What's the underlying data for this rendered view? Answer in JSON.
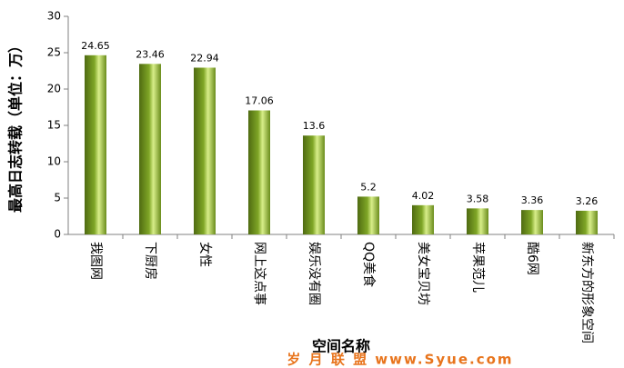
{
  "chart_data": {
    "type": "bar",
    "y_label": "最高日志转载（单位：万）",
    "x_label": "空间名称",
    "watermark": "岁 月 联 盟 www.Syue.com",
    "categories": [
      "我图网",
      "下厨房",
      "女性",
      "网上这点事",
      "娱乐没有圈",
      "QQ美食",
      "美女宝贝坊",
      "苹果范儿",
      "酷6网",
      "新东方的形象空间"
    ],
    "values": [
      24.65,
      23.46,
      22.94,
      17.06,
      13.6,
      5.2,
      4.02,
      3.58,
      3.36,
      3.26
    ],
    "color": "#7fa626",
    "ylim": [
      0,
      30
    ],
    "yticks": [
      0,
      5,
      10,
      15,
      20,
      25,
      30
    ],
    "grid": false
  }
}
